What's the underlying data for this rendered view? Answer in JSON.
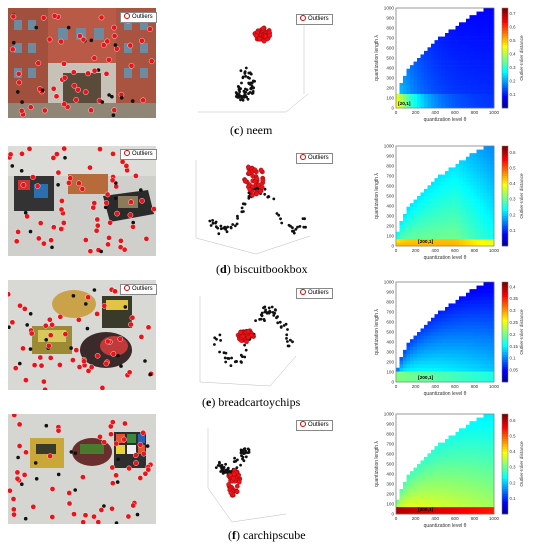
{
  "rows": [
    {
      "letter": "c",
      "caption": "neem",
      "legend_label": "Outliers",
      "scatter_legend_label": "Outliers",
      "heatmap": {
        "x_label": "quantization level θ",
        "y_label": "quantization length λ",
        "colorbar_label": "Outlier-Inlier distance",
        "x_ticks": [
          "0",
          "200",
          "400",
          "600",
          "800",
          "1000"
        ],
        "y_ticks": [
          "0",
          "100",
          "200",
          "300",
          "400",
          "500",
          "600",
          "700",
          "800",
          "900",
          "1000"
        ],
        "cbar_ticks": [
          "0.1",
          "0.2",
          "0.3",
          "0.4",
          "0.5",
          "0.6",
          "0.7"
        ],
        "marker": "[20,1]"
      }
    },
    {
      "letter": "d",
      "caption": "biscuitbookbox",
      "legend_label": "Outliers",
      "scatter_legend_label": "Outliers",
      "heatmap": {
        "x_label": "quantization level θ",
        "y_label": "quantization length λ",
        "colorbar_label": "Outlier-Inlier distance",
        "x_ticks": [
          "0",
          "200",
          "400",
          "600",
          "800",
          "1000"
        ],
        "y_ticks": [
          "0",
          "100",
          "200",
          "300",
          "400",
          "500",
          "600",
          "700",
          "800",
          "900",
          "1000"
        ],
        "cbar_ticks": [
          "0.1",
          "0.2",
          "0.3",
          "0.4",
          "0.5",
          "0.6"
        ],
        "marker": "[200,1]"
      }
    },
    {
      "letter": "e",
      "caption": "breadcartoychips",
      "legend_label": "Outliers",
      "scatter_legend_label": "Outliers",
      "heatmap": {
        "x_label": "quantization level θ",
        "y_label": "quantization length λ",
        "colorbar_label": "Outlier-Inlier distance",
        "x_ticks": [
          "0",
          "200",
          "400",
          "600",
          "800",
          "1000"
        ],
        "y_ticks": [
          "0",
          "100",
          "200",
          "300",
          "400",
          "500",
          "600",
          "700",
          "800",
          "900",
          "1000"
        ],
        "cbar_ticks": [
          "0.05",
          "0.1",
          "0.15",
          "0.2",
          "0.25",
          "0.3",
          "0.35",
          "0.4"
        ],
        "marker": "[200,1]"
      }
    },
    {
      "letter": "f",
      "caption": "carchipscube",
      "legend_label": "Outliers",
      "scatter_legend_label": "Outliers",
      "heatmap": {
        "x_label": "quantization level θ",
        "y_label": "quantization length λ",
        "colorbar_label": "Outlier-Inlier distance",
        "x_ticks": [
          "0",
          "200",
          "400",
          "600",
          "800",
          "1000"
        ],
        "y_ticks": [
          "0",
          "100",
          "200",
          "300",
          "400",
          "500",
          "600",
          "700",
          "800",
          "900",
          "1000"
        ],
        "cbar_ticks": [
          "0.1",
          "0.2",
          "0.3",
          "0.4",
          "0.5",
          "0.6"
        ],
        "marker": "[200,1]"
      }
    }
  ],
  "colors": {
    "outlier_red": "#e8141a",
    "inlier_black": "#111111"
  }
}
